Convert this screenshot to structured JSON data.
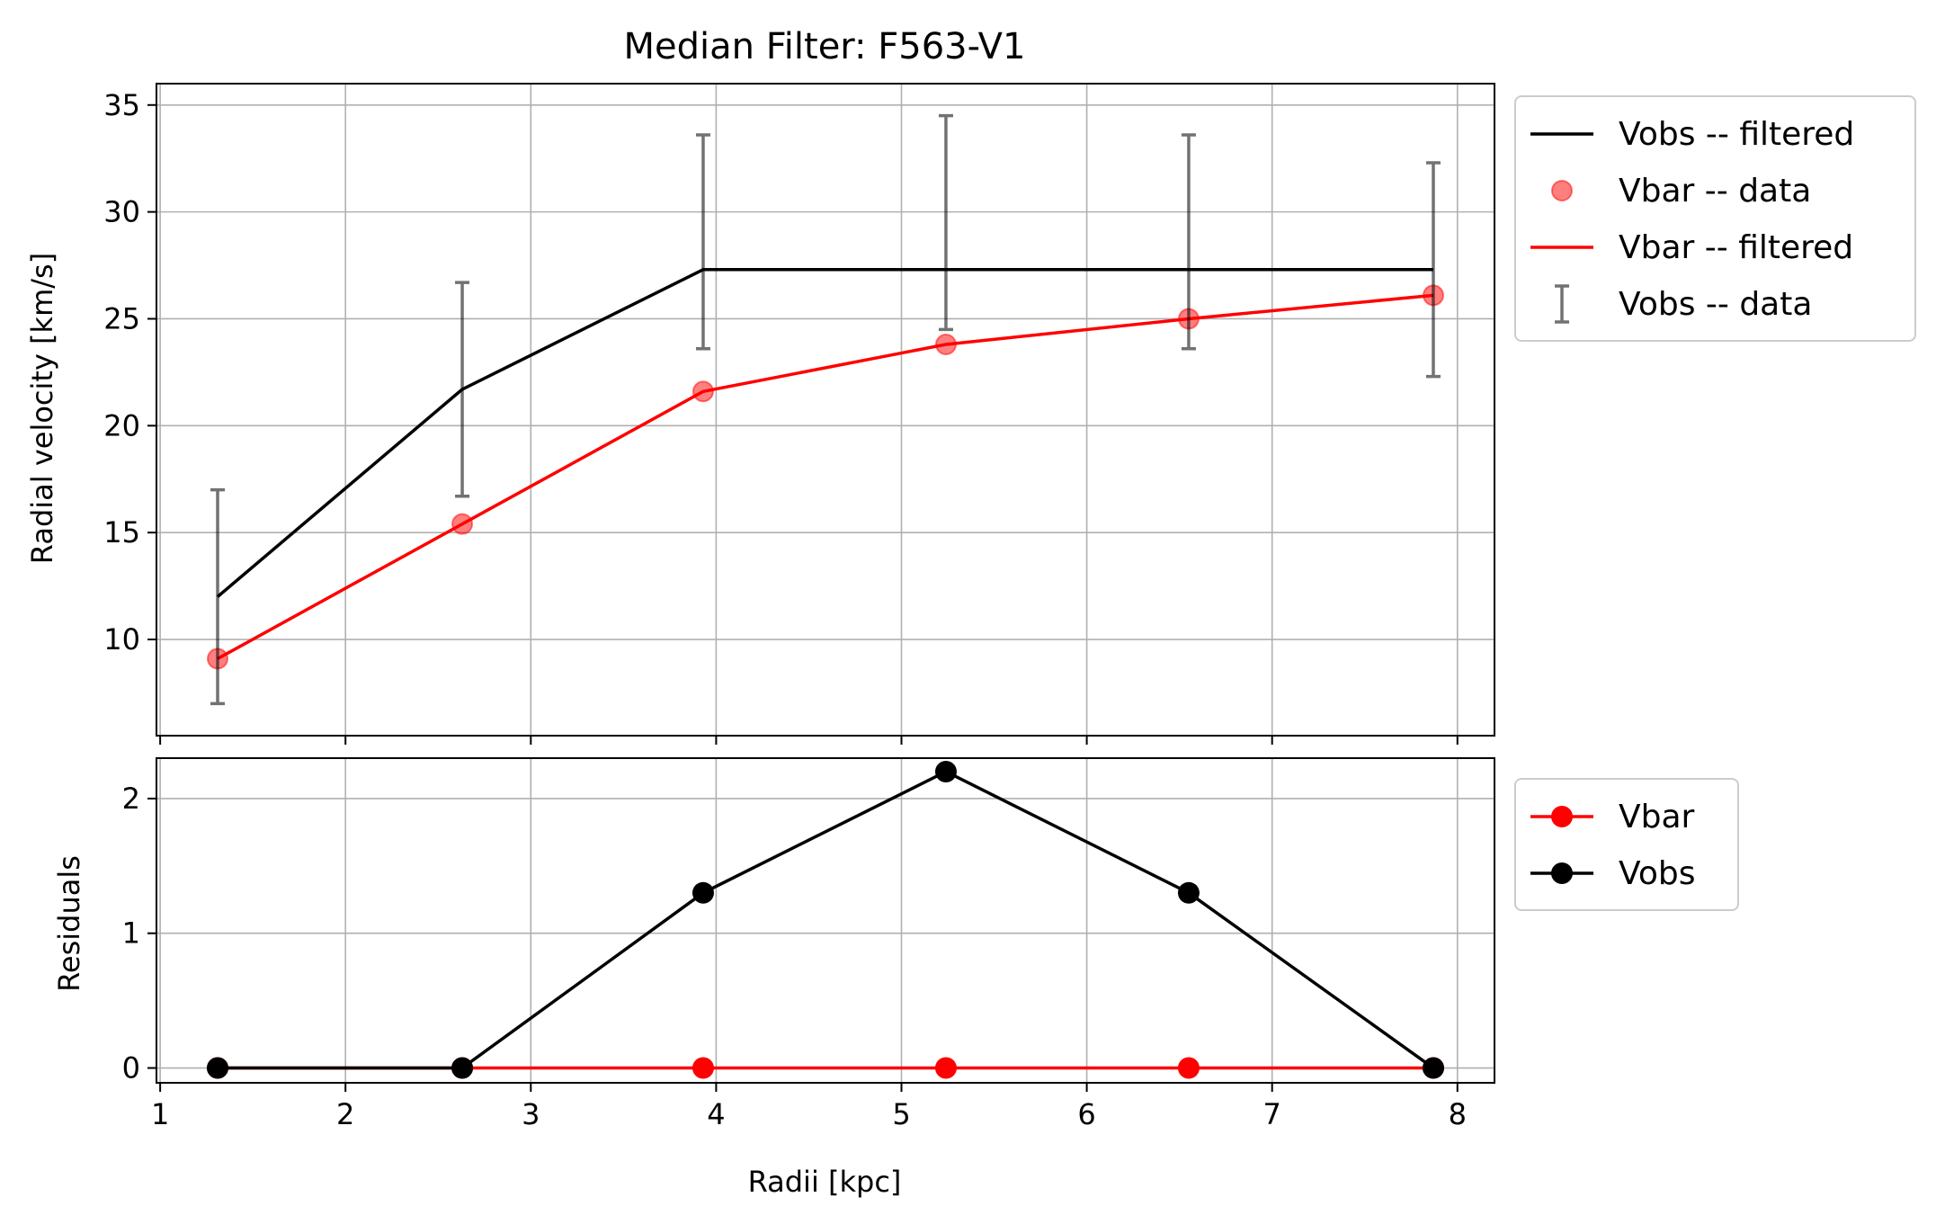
{
  "chart_data": [
    {
      "type": "line",
      "title": "Median Filter: F563-V1",
      "xlabel": "",
      "ylabel": "Radial velocity [km/s]",
      "xlim": [
        0.98,
        8.2
      ],
      "ylim": [
        5.5,
        36
      ],
      "x_ticks": [
        1,
        2,
        3,
        4,
        5,
        6,
        7,
        8
      ],
      "y_ticks": [
        10,
        15,
        20,
        25,
        30,
        35
      ],
      "grid": true,
      "legend_position": "outside-right",
      "x": [
        1.31,
        2.63,
        3.93,
        5.24,
        6.55,
        7.87
      ],
      "series": [
        {
          "name": "Vobs -- filtered",
          "kind": "line",
          "color": "#000000",
          "values": [
            12.0,
            21.7,
            27.3,
            27.3,
            27.3,
            27.3
          ]
        },
        {
          "name": "Vbar -- data",
          "kind": "scatter",
          "color": "#ff0000",
          "values": [
            9.1,
            15.4,
            21.6,
            23.8,
            25.0,
            26.1
          ]
        },
        {
          "name": "Vbar -- filtered",
          "kind": "line",
          "color": "#ff0000",
          "values": [
            9.1,
            15.4,
            21.6,
            23.8,
            25.0,
            26.1
          ]
        },
        {
          "name": "Vobs -- data",
          "kind": "errorbar",
          "color": "#808080",
          "low": [
            7.0,
            16.7,
            23.6,
            24.5,
            23.6,
            22.3
          ],
          "high": [
            17.0,
            26.7,
            33.6,
            34.5,
            33.6,
            32.3
          ]
        }
      ]
    },
    {
      "type": "line",
      "title": "",
      "xlabel": "Radii [kpc]",
      "ylabel": "Residuals",
      "xlim": [
        0.98,
        8.2
      ],
      "ylim": [
        -0.11,
        2.3
      ],
      "x_ticks": [
        1,
        2,
        3,
        4,
        5,
        6,
        7,
        8
      ],
      "y_ticks": [
        0,
        1,
        2
      ],
      "grid": true,
      "legend_position": "outside-right",
      "x": [
        1.31,
        2.63,
        3.93,
        5.24,
        6.55,
        7.87
      ],
      "series": [
        {
          "name": "Vbar",
          "kind": "line-marker",
          "color": "#ff0000",
          "values": [
            0,
            0,
            0,
            0,
            0,
            0
          ]
        },
        {
          "name": "Vobs",
          "kind": "line-marker",
          "color": "#000000",
          "values": [
            0,
            0,
            1.3,
            2.2,
            1.3,
            0
          ]
        }
      ]
    }
  ]
}
